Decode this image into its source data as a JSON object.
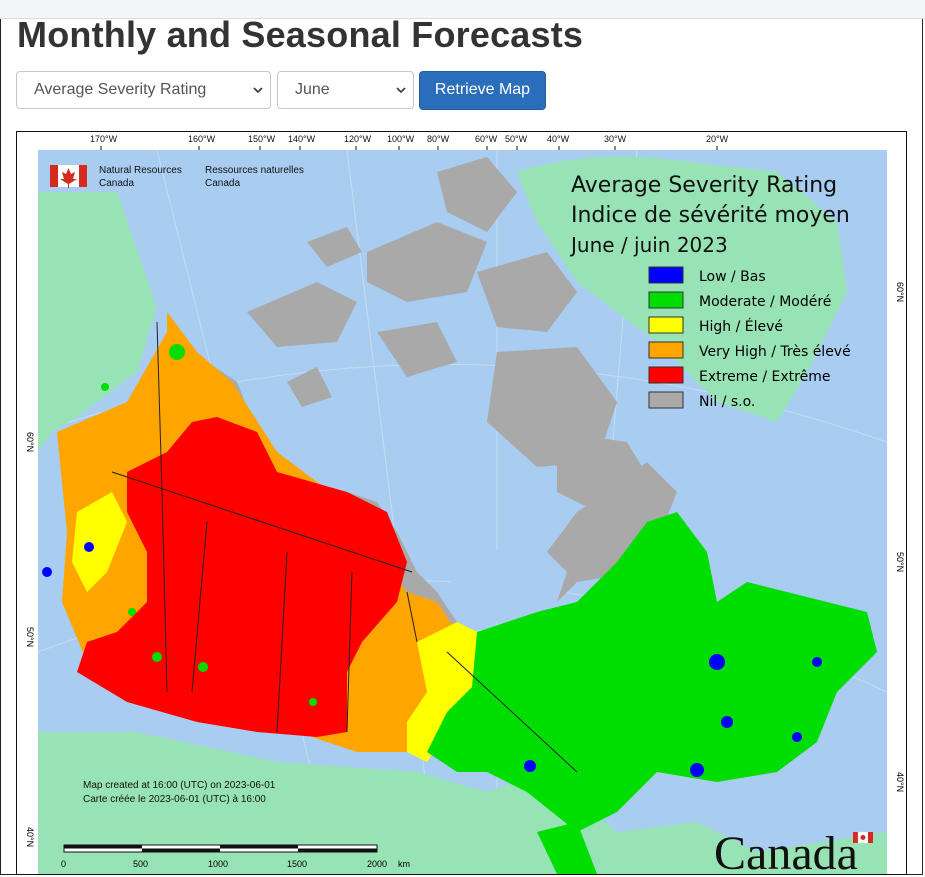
{
  "page": {
    "title": "Monthly and Seasonal Forecasts"
  },
  "controls": {
    "rating_select": "Average Severity Rating",
    "month_select": "June",
    "retrieve_button": "Retrieve Map"
  },
  "map": {
    "title_en": "Average Severity Rating",
    "title_fr": "Indice de sévérité moyen",
    "date": "June / juin 2023",
    "agency_en": "Natural Resources",
    "agency_en2": "Canada",
    "agency_fr": "Ressources naturelles",
    "agency_fr2": "Canada",
    "legend": [
      {
        "label": "Low / Bas",
        "color": "#0000ff"
      },
      {
        "label": "Moderate / Modéré",
        "color": "#00dd00"
      },
      {
        "label": "High / Élevé",
        "color": "#ffff00"
      },
      {
        "label": "Very High / Très élevé",
        "color": "#ffa500"
      },
      {
        "label": "Extreme / Extrême",
        "color": "#ff0000"
      },
      {
        "label": "Nil / s.o.",
        "color": "#a9a9a9"
      }
    ],
    "note_en": "Map created at 16:00 (UTC) on 2023-06-01",
    "note_fr": "Carte créée le 2023-06-01 (UTC) à 16:00",
    "top_lon_labels": [
      "170°W",
      "160°W",
      "150°W",
      "140°W",
      "120°W",
      "100°W",
      "80°W",
      "60°W",
      "50°W",
      "40°W",
      "30°W",
      "20°W"
    ],
    "left_lat_labels": [
      "60°N",
      "50°N",
      "40°N"
    ],
    "right_lat_labels": [
      "60°N",
      "50°N",
      "40°N"
    ],
    "scale_labels": [
      "0",
      "500",
      "1000",
      "1500",
      "2000",
      "km"
    ],
    "wordmark": "Canada",
    "colors": {
      "ocean": "#a8cdf0",
      "land_other": "#98e3b5",
      "nil": "#a9a9a9",
      "moderate": "#00dd00",
      "high": "#ffff00",
      "very_high": "#ffa500",
      "extreme": "#ff0000",
      "low": "#0000ff"
    }
  }
}
